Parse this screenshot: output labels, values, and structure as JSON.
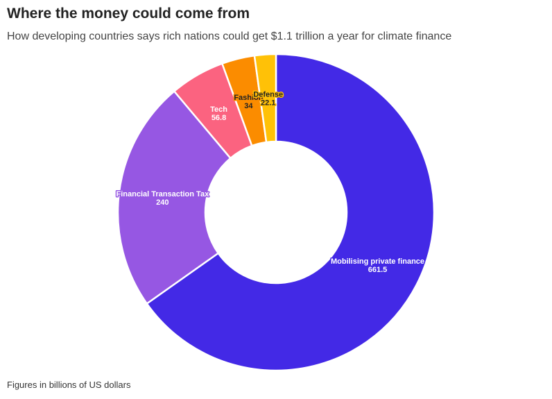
{
  "chart_data": {
    "type": "pie",
    "style": "donut",
    "title": "Where the money could come from",
    "subtitle": "How developing countries says rich nations could get $1.1 trillion a year for climate finance",
    "note": "Figures in billions of US dollars",
    "slices": [
      {
        "label": "Mobilising private finance",
        "value": 661.5,
        "color": "#4329E6",
        "label_color": "#ffffff"
      },
      {
        "label": "Financial Transaction Tax",
        "value": 240,
        "color": "#9657E3",
        "label_color": "#ffffff"
      },
      {
        "label": "Tech",
        "value": 56.8,
        "color": "#FB6380",
        "label_color": "#ffffff"
      },
      {
        "label": "Fashion",
        "value": 34,
        "color": "#FB8C00",
        "label_color": "#222222"
      },
      {
        "label": "Defense",
        "value": 22.1,
        "color": "#FFC107",
        "label_color": "#222222"
      }
    ]
  }
}
